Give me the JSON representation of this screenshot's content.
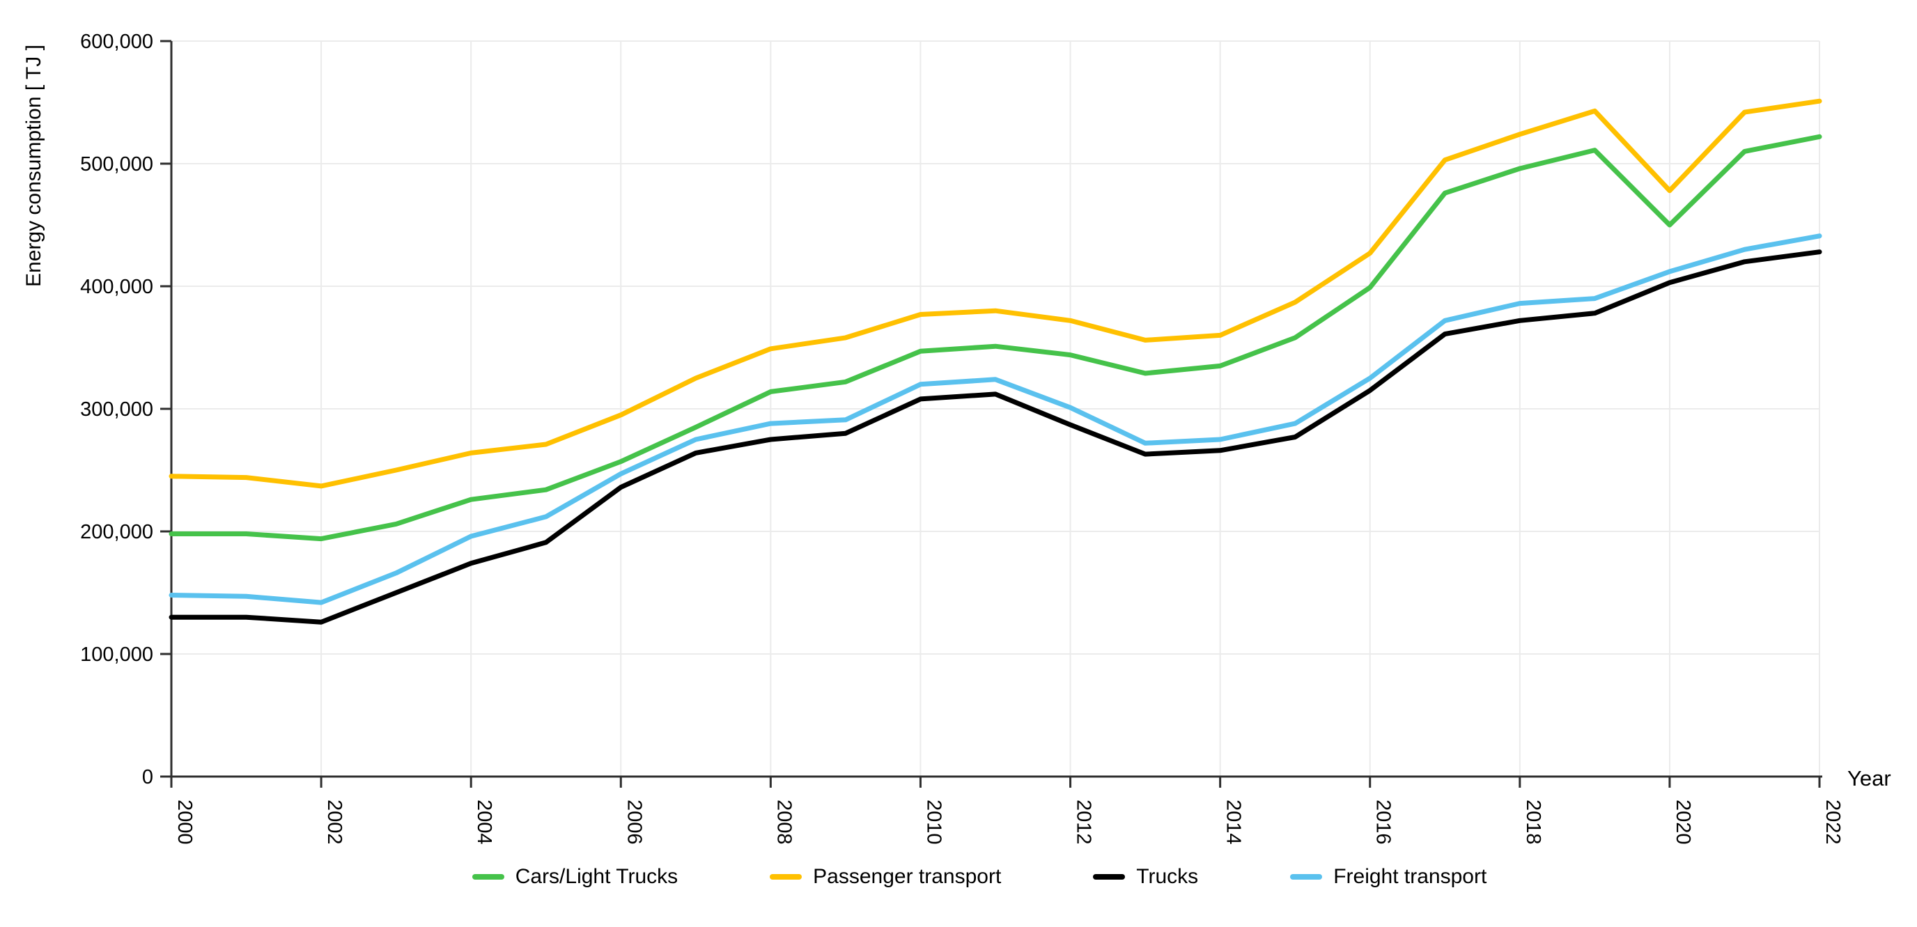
{
  "chart_data": {
    "type": "line",
    "title": "",
    "xlabel": "Year",
    "ylabel": "Energy consumption [ TJ ]",
    "x": [
      2000,
      2001,
      2002,
      2003,
      2004,
      2005,
      2006,
      2007,
      2008,
      2009,
      2010,
      2011,
      2012,
      2013,
      2014,
      2015,
      2016,
      2017,
      2018,
      2019,
      2020,
      2021,
      2022
    ],
    "xlim": [
      2000,
      2022
    ],
    "ylim": [
      0,
      600000
    ],
    "x_tick_years": [
      2000,
      2002,
      2004,
      2006,
      2008,
      2010,
      2012,
      2014,
      2016,
      2018,
      2020,
      2022
    ],
    "y_ticks": [
      {
        "value": 0,
        "label": "0"
      },
      {
        "value": 100000,
        "label": "100,000"
      },
      {
        "value": 200000,
        "label": "200,000"
      },
      {
        "value": 300000,
        "label": "300,000"
      },
      {
        "value": 400000,
        "label": "400,000"
      },
      {
        "value": 500000,
        "label": "500,000"
      },
      {
        "value": 600000,
        "label": "600,000"
      }
    ],
    "grid": "horizontal and vertical light gray gridlines",
    "legend_position": "bottom center",
    "series": [
      {
        "name": "Cars/Light Trucks",
        "color": "#45c24a",
        "values": [
          198000,
          198000,
          194000,
          206000,
          226000,
          234000,
          257000,
          285000,
          314000,
          322000,
          347000,
          351000,
          344000,
          329000,
          335000,
          358000,
          399000,
          476000,
          496000,
          511000,
          450000,
          510000,
          522000
        ]
      },
      {
        "name": "Passenger transport",
        "color": "#ffc000",
        "values": [
          245000,
          244000,
          237000,
          250000,
          264000,
          271000,
          295000,
          325000,
          349000,
          358000,
          377000,
          380000,
          372000,
          356000,
          360000,
          387000,
          427000,
          503000,
          524000,
          543000,
          478000,
          542000,
          551000
        ]
      },
      {
        "name": "Trucks",
        "color": "#000000",
        "values": [
          130000,
          130000,
          126000,
          150000,
          174000,
          191000,
          236000,
          264000,
          275000,
          280000,
          308000,
          312000,
          287000,
          263000,
          266000,
          277000,
          315000,
          361000,
          372000,
          378000,
          403000,
          420000,
          428000
        ]
      },
      {
        "name": "Freight transport",
        "color": "#5ac1ee",
        "values": [
          148000,
          147000,
          142000,
          166000,
          196000,
          212000,
          247000,
          275000,
          288000,
          291000,
          320000,
          324000,
          301000,
          272000,
          275000,
          288000,
          325000,
          372000,
          386000,
          390000,
          412000,
          430000,
          441000
        ]
      }
    ],
    "style": {
      "grid_color": "#ebebeb",
      "axis_color": "#2e2e2e",
      "line_width": 7
    }
  }
}
